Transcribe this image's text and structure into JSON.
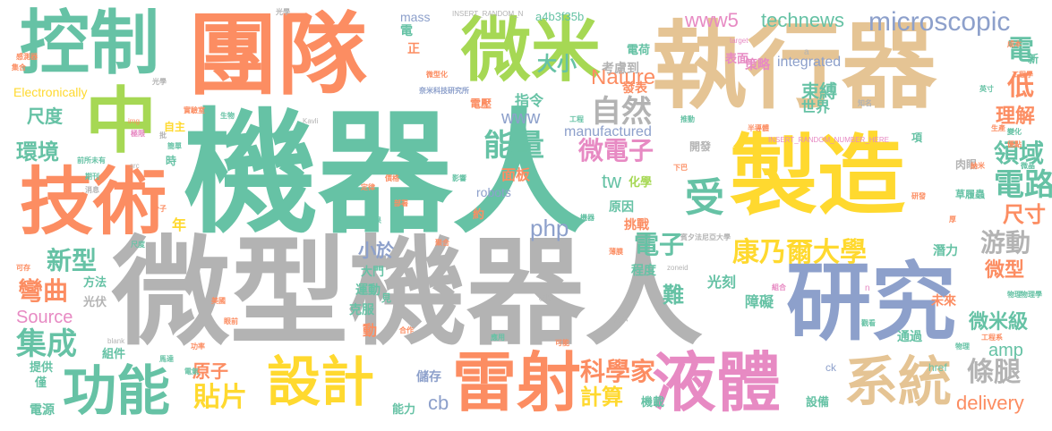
{
  "palette": {
    "green": "#66c2a5",
    "orange": "#fc8d62",
    "blue": "#8da0cb",
    "pink": "#e78ac3",
    "lime": "#a6d854",
    "yellow": "#ffd92f",
    "tan": "#e5c494",
    "gray": "#b3b3b3"
  },
  "words": {
    "w01": {
      "text": "機器人",
      "color": "#66c2a5"
    },
    "w02": {
      "text": "微型機器人",
      "color": "#b3b3b3"
    },
    "w03": {
      "text": "執行器",
      "color": "#e5c494"
    },
    "w04": {
      "text": "製造",
      "color": "#ffd92f"
    },
    "w05": {
      "text": "研究",
      "color": "#8da0cb"
    },
    "w06": {
      "text": "團隊",
      "color": "#fc8d62"
    },
    "w07": {
      "text": "微米",
      "color": "#a6d854"
    },
    "w08": {
      "text": "控制",
      "color": "#66c2a5"
    },
    "w09": {
      "text": "技術",
      "color": "#fc8d62"
    },
    "w10": {
      "text": "中",
      "color": "#a6d854"
    },
    "w11": {
      "text": "雷射",
      "color": "#fc8d62"
    },
    "w12": {
      "text": "液體",
      "color": "#e78ac3"
    },
    "w13": {
      "text": "設計",
      "color": "#ffd92f"
    },
    "w14": {
      "text": "功能",
      "color": "#66c2a5"
    },
    "w15": {
      "text": "系統",
      "color": "#e5c494"
    },
    "w16": {
      "text": "受",
      "color": "#66c2a5"
    },
    "w17": {
      "text": "microscopic",
      "color": "#8da0cb"
    },
    "w18": {
      "text": "www5",
      "color": "#e78ac3"
    },
    "w19": {
      "text": "technews",
      "color": "#66c2a5"
    },
    "w20": {
      "text": "康乃爾大學",
      "color": "#ffd92f"
    },
    "w21": {
      "text": "科學家",
      "color": "#fc8d62"
    },
    "w22": {
      "text": "電子",
      "color": "#66c2a5"
    },
    "w23": {
      "text": "微電子",
      "color": "#e78ac3"
    },
    "w24": {
      "text": "能量",
      "color": "#66c2a5"
    },
    "w25": {
      "text": "自然",
      "color": "#b3b3b3"
    },
    "w26": {
      "text": "Nature",
      "color": "#fc8d62"
    },
    "w27": {
      "text": "大小",
      "color": "#66c2a5"
    },
    "w28": {
      "text": "環境",
      "color": "#66c2a5"
    },
    "w29": {
      "text": "新型",
      "color": "#66c2a5"
    },
    "w30": {
      "text": "彎曲",
      "color": "#fc8d62"
    },
    "w31": {
      "text": "Source",
      "color": "#e78ac3"
    },
    "w32": {
      "text": "集成",
      "color": "#66c2a5"
    },
    "w33": {
      "text": "貼片",
      "color": "#ffd92f"
    },
    "w34": {
      "text": "計算",
      "color": "#ffd92f"
    },
    "w35": {
      "text": "delivery",
      "color": "#fc8d62"
    },
    "w36": {
      "text": "條腿",
      "color": "#b3b3b3"
    },
    "w37": {
      "text": "游動",
      "color": "#b3b3b3"
    },
    "w38": {
      "text": "領域",
      "color": "#66c2a5"
    },
    "w39": {
      "text": "電路",
      "color": "#66c2a5"
    },
    "w40": {
      "text": "尺寸",
      "color": "#fc8d62"
    },
    "w41": {
      "text": "理解",
      "color": "#fc8d62"
    },
    "w42": {
      "text": "微型",
      "color": "#fc8d62"
    },
    "w43": {
      "text": "微米級",
      "color": "#66c2a5"
    },
    "w44": {
      "text": "amp",
      "color": "#66c2a5"
    },
    "w45": {
      "text": "php",
      "color": "#8da0cb"
    },
    "w46": {
      "text": "tw",
      "color": "#66c2a5"
    },
    "w47": {
      "text": "www",
      "color": "#8da0cb"
    },
    "w48": {
      "text": "尺度",
      "color": "#66c2a5"
    },
    "w49": {
      "text": "原子",
      "color": "#fc8d62"
    },
    "w50": {
      "text": "cb",
      "color": "#8da0cb"
    },
    "w51": {
      "text": "小於",
      "color": "#8da0cb"
    },
    "w52": {
      "text": "難",
      "color": "#66c2a5"
    },
    "w53": {
      "text": "低",
      "color": "#fc8d62"
    },
    "w54": {
      "text": "電",
      "color": "#66c2a5"
    },
    "w55": {
      "text": "束縛",
      "color": "#66c2a5"
    },
    "w56": {
      "text": "世界",
      "color": "#66c2a5"
    },
    "w57": {
      "text": "integrated",
      "color": "#8da0cb"
    },
    "w58": {
      "text": "manufactured",
      "color": "#8da0cb"
    },
    "w59": {
      "text": "robots",
      "color": "#8da0cb"
    },
    "w60": {
      "text": "a4b3f35b",
      "color": "#66c2a5"
    },
    "w61": {
      "text": "mass",
      "color": "#8da0cb"
    },
    "w62": {
      "text": "Electronically",
      "color": "#ffd92f"
    },
    "w63": {
      "text": "策略",
      "color": "#e78ac3"
    },
    "w64": {
      "text": "表面",
      "color": "#e78ac3"
    },
    "w65": {
      "text": "電荷",
      "color": "#66c2a5"
    },
    "w66": {
      "text": "考慮到",
      "color": "#b3b3b3"
    },
    "w67": {
      "text": "發表",
      "color": "#fc8d62"
    },
    "w68": {
      "text": "指令",
      "color": "#66c2a5"
    },
    "w69": {
      "text": "面板",
      "color": "#fc8d62"
    },
    "w70": {
      "text": "光刻",
      "color": "#66c2a5"
    },
    "w71": {
      "text": "障礙",
      "color": "#66c2a5"
    },
    "w72": {
      "text": "未來",
      "color": "#fc8d62"
    },
    "w73": {
      "text": "通過",
      "color": "#66c2a5"
    },
    "w74": {
      "text": "潛力",
      "color": "#66c2a5"
    },
    "w75": {
      "text": "年",
      "color": "#ffd92f"
    },
    "w76": {
      "text": "挑戰",
      "color": "#fc8d62"
    },
    "w77": {
      "text": "原因",
      "color": "#66c2a5"
    },
    "w78": {
      "text": "化學",
      "color": "#a6d854"
    },
    "w79": {
      "text": "運動",
      "color": "#66c2a5"
    },
    "w80": {
      "text": "克服",
      "color": "#66c2a5"
    },
    "w81": {
      "text": "方法",
      "color": "#66c2a5"
    },
    "w82": {
      "text": "光伏",
      "color": "#b3b3b3"
    },
    "w83": {
      "text": "程度",
      "color": "#66c2a5"
    },
    "w84": {
      "text": "大門",
      "color": "#66c2a5"
    },
    "w85": {
      "text": "動",
      "color": "#fc8d62"
    },
    "w86": {
      "text": "儲存",
      "color": "#8da0cb"
    },
    "w87": {
      "text": "能力",
      "color": "#66c2a5"
    },
    "w88": {
      "text": "機載",
      "color": "#66c2a5"
    },
    "w89": {
      "text": "設備",
      "color": "#66c2a5"
    },
    "w90": {
      "text": "組件",
      "color": "#66c2a5"
    },
    "w91": {
      "text": "提供",
      "color": "#66c2a5"
    },
    "w92": {
      "text": "僅",
      "color": "#66c2a5"
    },
    "w93": {
      "text": "電源",
      "color": "#66c2a5"
    },
    "w94": {
      "text": "自主",
      "color": "#ffd92f"
    },
    "w95": {
      "text": "時",
      "color": "#66c2a5"
    },
    "w96": {
      "text": "開發",
      "color": "#b3b3b3"
    },
    "w97": {
      "text": "電壓",
      "color": "#fc8d62"
    },
    "w98": {
      "text": "正",
      "color": "#fc8d62"
    },
    "w99": {
      "text": "電",
      "color": "#66c2a5"
    },
    "w100": {
      "text": "新",
      "color": "#66c2a5"
    },
    "w101": {
      "text": "肉眼",
      "color": "#b3b3b3"
    },
    "w102": {
      "text": "項",
      "color": "#66c2a5"
    },
    "w103": {
      "text": "草履蟲",
      "color": "#66c2a5"
    },
    "w104": {
      "text": "ck",
      "color": "#8da0cb"
    },
    "w105": {
      "text": "href",
      "color": "#66c2a5"
    },
    "w106": {
      "text": "約",
      "color": "#fc8d62"
    },
    "w107": {
      "text": "見",
      "color": "#66c2a5"
    },
    "w108": {
      "text": "INSERT_RANDOM_N",
      "color": "#b3b3b3"
    },
    "w109": {
      "text": "INSERT_RANDOM_NUMBER_HERE",
      "color": "#e78ac3"
    },
    "w110": {
      "text": "奈米科技研究所",
      "color": "#8da0cb"
    },
    "w111": {
      "text": "微型化",
      "color": "#fc8d62"
    },
    "w112": {
      "text": "生物",
      "color": "#66c2a5"
    },
    "w113": {
      "text": "實驗室",
      "color": "#fc8d62"
    },
    "w114": {
      "text": "工程",
      "color": "#66c2a5"
    },
    "w115": {
      "text": "成果",
      "color": "#66c2a5"
    },
    "w116": {
      "text": "下巴",
      "color": "#fc8d62"
    },
    "w117": {
      "text": "半導體",
      "color": "#fc8d62"
    },
    "w118": {
      "text": "知名",
      "color": "#b3b3b3"
    },
    "w119": {
      "text": "變化",
      "color": "#66c2a5"
    },
    "w120": {
      "text": "賓夕法尼亞大學",
      "color": "#b3b3b3"
    },
    "w121": {
      "text": "相關",
      "color": "#b3b3b3"
    },
    "w122": {
      "text": "target",
      "color": "#e78ac3"
    },
    "w123": {
      "text": "img",
      "color": "#fc8d62"
    },
    "w124": {
      "text": "Kavli",
      "color": "#b3b3b3"
    },
    "w125": {
      "text": "blank",
      "color": "#b3b3b3"
    },
    "w126": {
      "text": "zoneid",
      "color": "#b3b3b3"
    },
    "w127": {
      "text": "src",
      "color": "#b3b3b3"
    },
    "w128": {
      "text": "可存",
      "color": "#fc8d62"
    },
    "w129": {
      "text": "期刊",
      "color": "#66c2a5"
    },
    "w130": {
      "text": "消息",
      "color": "#b3b3b3"
    },
    "w131": {
      "text": "感測器",
      "color": "#fc8d62"
    },
    "w132": {
      "text": "光學",
      "color": "#b3b3b3"
    },
    "w133": {
      "text": "集合",
      "color": "#fc8d62"
    },
    "w134": {
      "text": "英寸",
      "color": "#66c2a5"
    },
    "w135": {
      "text": "物理",
      "color": "#66c2a5"
    },
    "w136": {
      "text": "工程系",
      "color": "#fc8d62"
    },
    "w137": {
      "text": "成本",
      "color": "#fc8d62"
    },
    "w138": {
      "text": "優點",
      "color": "#fc8d62"
    },
    "w139": {
      "text": "觀看",
      "color": "#66c2a5"
    },
    "w140": {
      "text": "厚",
      "color": "#fc8d62"
    },
    "w141": {
      "text": "功率",
      "color": "#fc8d62"
    },
    "w142": {
      "text": "馬達",
      "color": "#66c2a5"
    },
    "w143": {
      "text": "電氣",
      "color": "#66c2a5"
    },
    "w144": {
      "text": "眼前",
      "color": "#fc8d62"
    },
    "w145": {
      "text": "美國",
      "color": "#fc8d62"
    },
    "w146": {
      "text": "定律",
      "color": "#fc8d62"
    },
    "w147": {
      "text": "前所未有",
      "color": "#66c2a5"
    },
    "w148": {
      "text": "簡單",
      "color": "#66c2a5"
    },
    "w149": {
      "text": "批",
      "color": "#b3b3b3"
    },
    "w150": {
      "text": "極限",
      "color": "#e78ac3"
    },
    "w151": {
      "text": "分子",
      "color": "#fc8d62"
    },
    "w152": {
      "text": "尺度",
      "color": "#66c2a5"
    },
    "w153": {
      "text": "部署",
      "color": "#fc8d62"
    },
    "w154": {
      "text": "影響",
      "color": "#66c2a5"
    },
    "w155": {
      "text": "價格",
      "color": "#fc8d62"
    },
    "w156": {
      "text": "聚合",
      "color": "#fc8d62"
    },
    "w157": {
      "text": "可能",
      "color": "#fc8d62"
    },
    "w158": {
      "text": "微小",
      "color": "#b3b3b3"
    },
    "w159": {
      "text": "應用",
      "color": "#66c2a5"
    },
    "w160": {
      "text": "合作",
      "color": "#fc8d62"
    },
    "w161": {
      "text": "機器",
      "color": "#66c2a5"
    },
    "w162": {
      "text": "薄膜",
      "color": "#fc8d62"
    },
    "w163": {
      "text": "組合",
      "color": "#e78ac3"
    },
    "w164": {
      "text": "推動",
      "color": "#66c2a5"
    },
    "w165": {
      "text": "納米",
      "color": "#fc8d62"
    },
    "w166": {
      "text": "微晶",
      "color": "#66c2a5"
    },
    "w167": {
      "text": "生產",
      "color": "#fc8d62"
    },
    "w168": {
      "text": "物理學",
      "color": "#66c2a5"
    },
    "w169": {
      "text": "工程學",
      "color": "#fc8d62"
    },
    "w170": {
      "text": "物理",
      "color": "#66c2a5"
    },
    "w171": {
      "text": "研發",
      "color": "#fc8d62"
    },
    "w172": {
      "text": "n",
      "color": "#e78ac3"
    },
    "w173": {
      "text": "a",
      "color": "#b3b3b3"
    },
    "w174": {
      "text": "光學",
      "color": "#b3b3b3"
    }
  }
}
